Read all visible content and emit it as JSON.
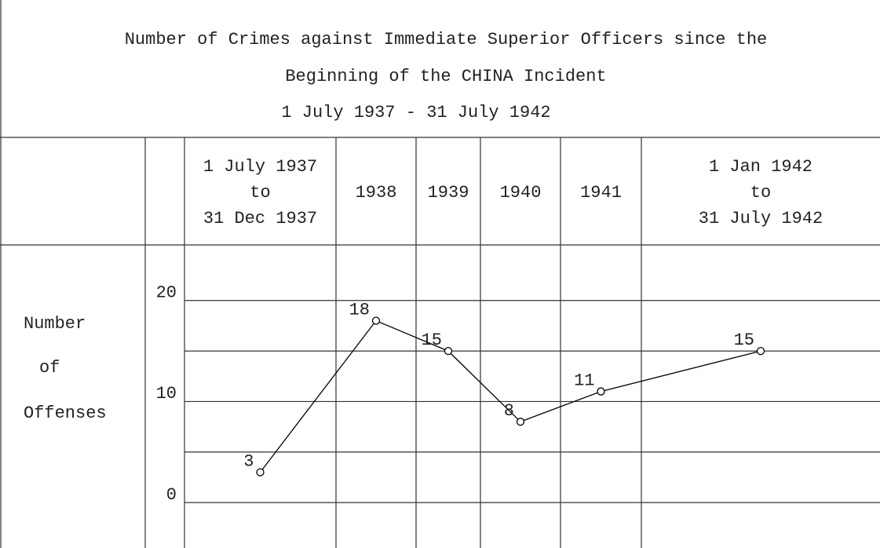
{
  "chart_data": {
    "type": "line",
    "title": [
      "Number of Crimes against Immediate Superior Officers since the",
      "Beginning of the CHINA Incident"
    ],
    "subtitle": "1 July 1937 - 31 July 1942",
    "ylabel": [
      "Number",
      "of",
      "Offenses"
    ],
    "categories": [
      [
        "1 July 1937",
        "to",
        "31 Dec 1937"
      ],
      "1938",
      "1939",
      "1940",
      "1941",
      [
        "1 Jan 1942",
        "to",
        "31 July 1942"
      ]
    ],
    "values": [
      3,
      18,
      15,
      8,
      11,
      15
    ],
    "color": "#000000",
    "ylim": [
      -4.5,
      25.5
    ],
    "yticks": [
      0,
      10,
      20
    ],
    "ygrid": [
      0,
      5,
      10,
      15,
      20
    ]
  }
}
